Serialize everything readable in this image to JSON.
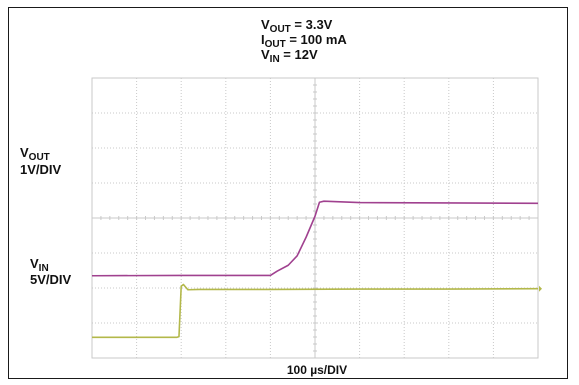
{
  "conditions": {
    "vout": {
      "sym": "V",
      "sub": "OUT",
      "rest": " = 3.3V"
    },
    "iout": {
      "sym": "I",
      "sub": "OUT",
      "rest": " = 100 mA"
    },
    "vin": {
      "sym": "V",
      "sub": "IN",
      "rest": " = 12V"
    }
  },
  "trace_labels": {
    "vout": {
      "sym": "V",
      "sub": "OUT",
      "scale": "1V/DIV"
    },
    "vin": {
      "sym": "V",
      "sub": "IN",
      "scale": "5V/DIV"
    }
  },
  "colors": {
    "vout_trace": "#a0418f",
    "vin_trace": "#b3b84a",
    "grid": "#c9c9c9",
    "frame": "#1a1a1a"
  },
  "chart_data": {
    "type": "line",
    "title": "",
    "xlabel": "100 µs/DIV",
    "ylabel": "",
    "x_divisions": 10,
    "y_divisions": 8,
    "grid": true,
    "xlim": [
      0,
      1000
    ],
    "x_unit": "µs",
    "series": [
      {
        "name": "VOUT",
        "scale": "1V/DIV",
        "color": "#a0418f",
        "points": [
          [
            0,
            2.35
          ],
          [
            200,
            2.36
          ],
          [
            400,
            2.36
          ],
          [
            415,
            2.48
          ],
          [
            440,
            2.65
          ],
          [
            460,
            2.92
          ],
          [
            480,
            3.45
          ],
          [
            500,
            4.05
          ],
          [
            510,
            4.45
          ],
          [
            520,
            4.48
          ],
          [
            600,
            4.44
          ],
          [
            800,
            4.43
          ],
          [
            1000,
            4.42
          ]
        ]
      },
      {
        "name": "VIN",
        "scale": "5V/DIV",
        "color": "#b3b84a",
        "points": [
          [
            0,
            0.59
          ],
          [
            190,
            0.59
          ],
          [
            195,
            0.61
          ],
          [
            200,
            2.05
          ],
          [
            205,
            2.1
          ],
          [
            215,
            1.95
          ],
          [
            240,
            1.96
          ],
          [
            400,
            1.96
          ],
          [
            600,
            1.97
          ],
          [
            800,
            1.97
          ],
          [
            1000,
            1.98
          ]
        ]
      }
    ]
  }
}
